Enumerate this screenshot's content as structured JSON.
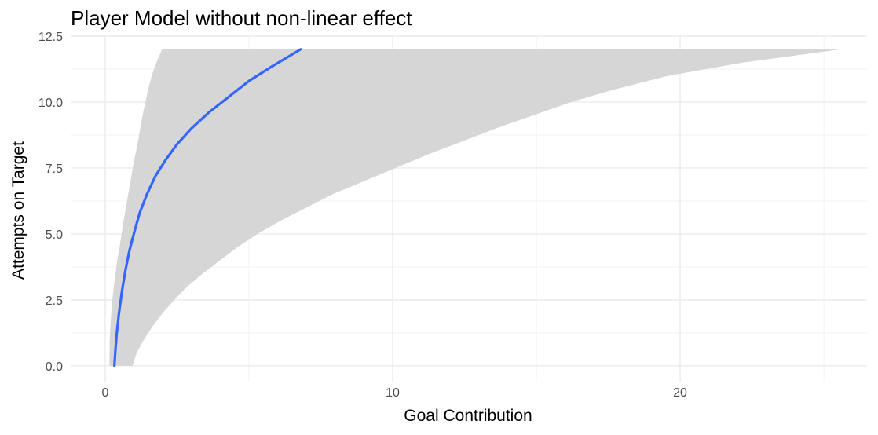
{
  "chart_data": {
    "type": "line",
    "title": "Player Model without non-linear effect",
    "xlabel": "Goal Contribution",
    "ylabel": "Attempts on Target",
    "xlim": [
      -1.2,
      26.5
    ],
    "ylim": [
      -0.6,
      12.5
    ],
    "x_ticks": [
      0,
      10,
      20
    ],
    "x_tick_labels": [
      "0",
      "10",
      "20"
    ],
    "x_minor_ticks": [
      5,
      15,
      25
    ],
    "y_ticks": [
      0,
      2.5,
      5,
      7.5,
      10,
      12.5
    ],
    "y_tick_labels": [
      "0.0",
      "2.5",
      "5.0",
      "7.5",
      "10.0",
      "12.5"
    ],
    "y_minor_ticks": [
      1.25,
      3.75,
      6.25,
      8.75,
      11.25
    ],
    "grid": true,
    "line_color": "#3366ff",
    "ribbon_color": "#d6d6d6",
    "series": [
      {
        "type": "line",
        "x": [
          0.32,
          0.35,
          0.4,
          0.48,
          0.58,
          0.7,
          0.85,
          1.02,
          1.2,
          1.45,
          1.75,
          2.1,
          2.5,
          3.0,
          3.6,
          4.3,
          5.0,
          5.8,
          6.8
        ],
        "y": [
          0.0,
          0.5,
          1.2,
          2.0,
          2.8,
          3.6,
          4.4,
          5.1,
          5.8,
          6.5,
          7.2,
          7.8,
          8.4,
          9.0,
          9.6,
          10.2,
          10.8,
          11.35,
          12.0
        ]
      },
      {
        "type": "ribbon",
        "y": [
          0.0,
          0.5,
          1.0,
          1.5,
          2.0,
          2.5,
          3.0,
          3.5,
          4.0,
          4.5,
          5.0,
          5.5,
          6.0,
          6.5,
          7.0,
          7.5,
          8.0,
          8.5,
          9.0,
          9.5,
          10.0,
          10.5,
          11.0,
          11.5,
          12.0
        ],
        "xmin": [
          0.15,
          0.15,
          0.16,
          0.18,
          0.21,
          0.25,
          0.3,
          0.36,
          0.42,
          0.5,
          0.57,
          0.64,
          0.72,
          0.8,
          0.88,
          0.96,
          1.05,
          1.14,
          1.22,
          1.3,
          1.4,
          1.5,
          1.62,
          1.78,
          1.98
        ],
        "xmax": [
          0.95,
          1.1,
          1.35,
          1.65,
          2.0,
          2.4,
          2.85,
          3.4,
          4.0,
          4.6,
          5.3,
          6.1,
          7.0,
          7.9,
          9.0,
          10.1,
          11.2,
          12.4,
          13.6,
          14.9,
          16.2,
          17.8,
          19.6,
          22.2,
          25.6
        ]
      }
    ]
  }
}
